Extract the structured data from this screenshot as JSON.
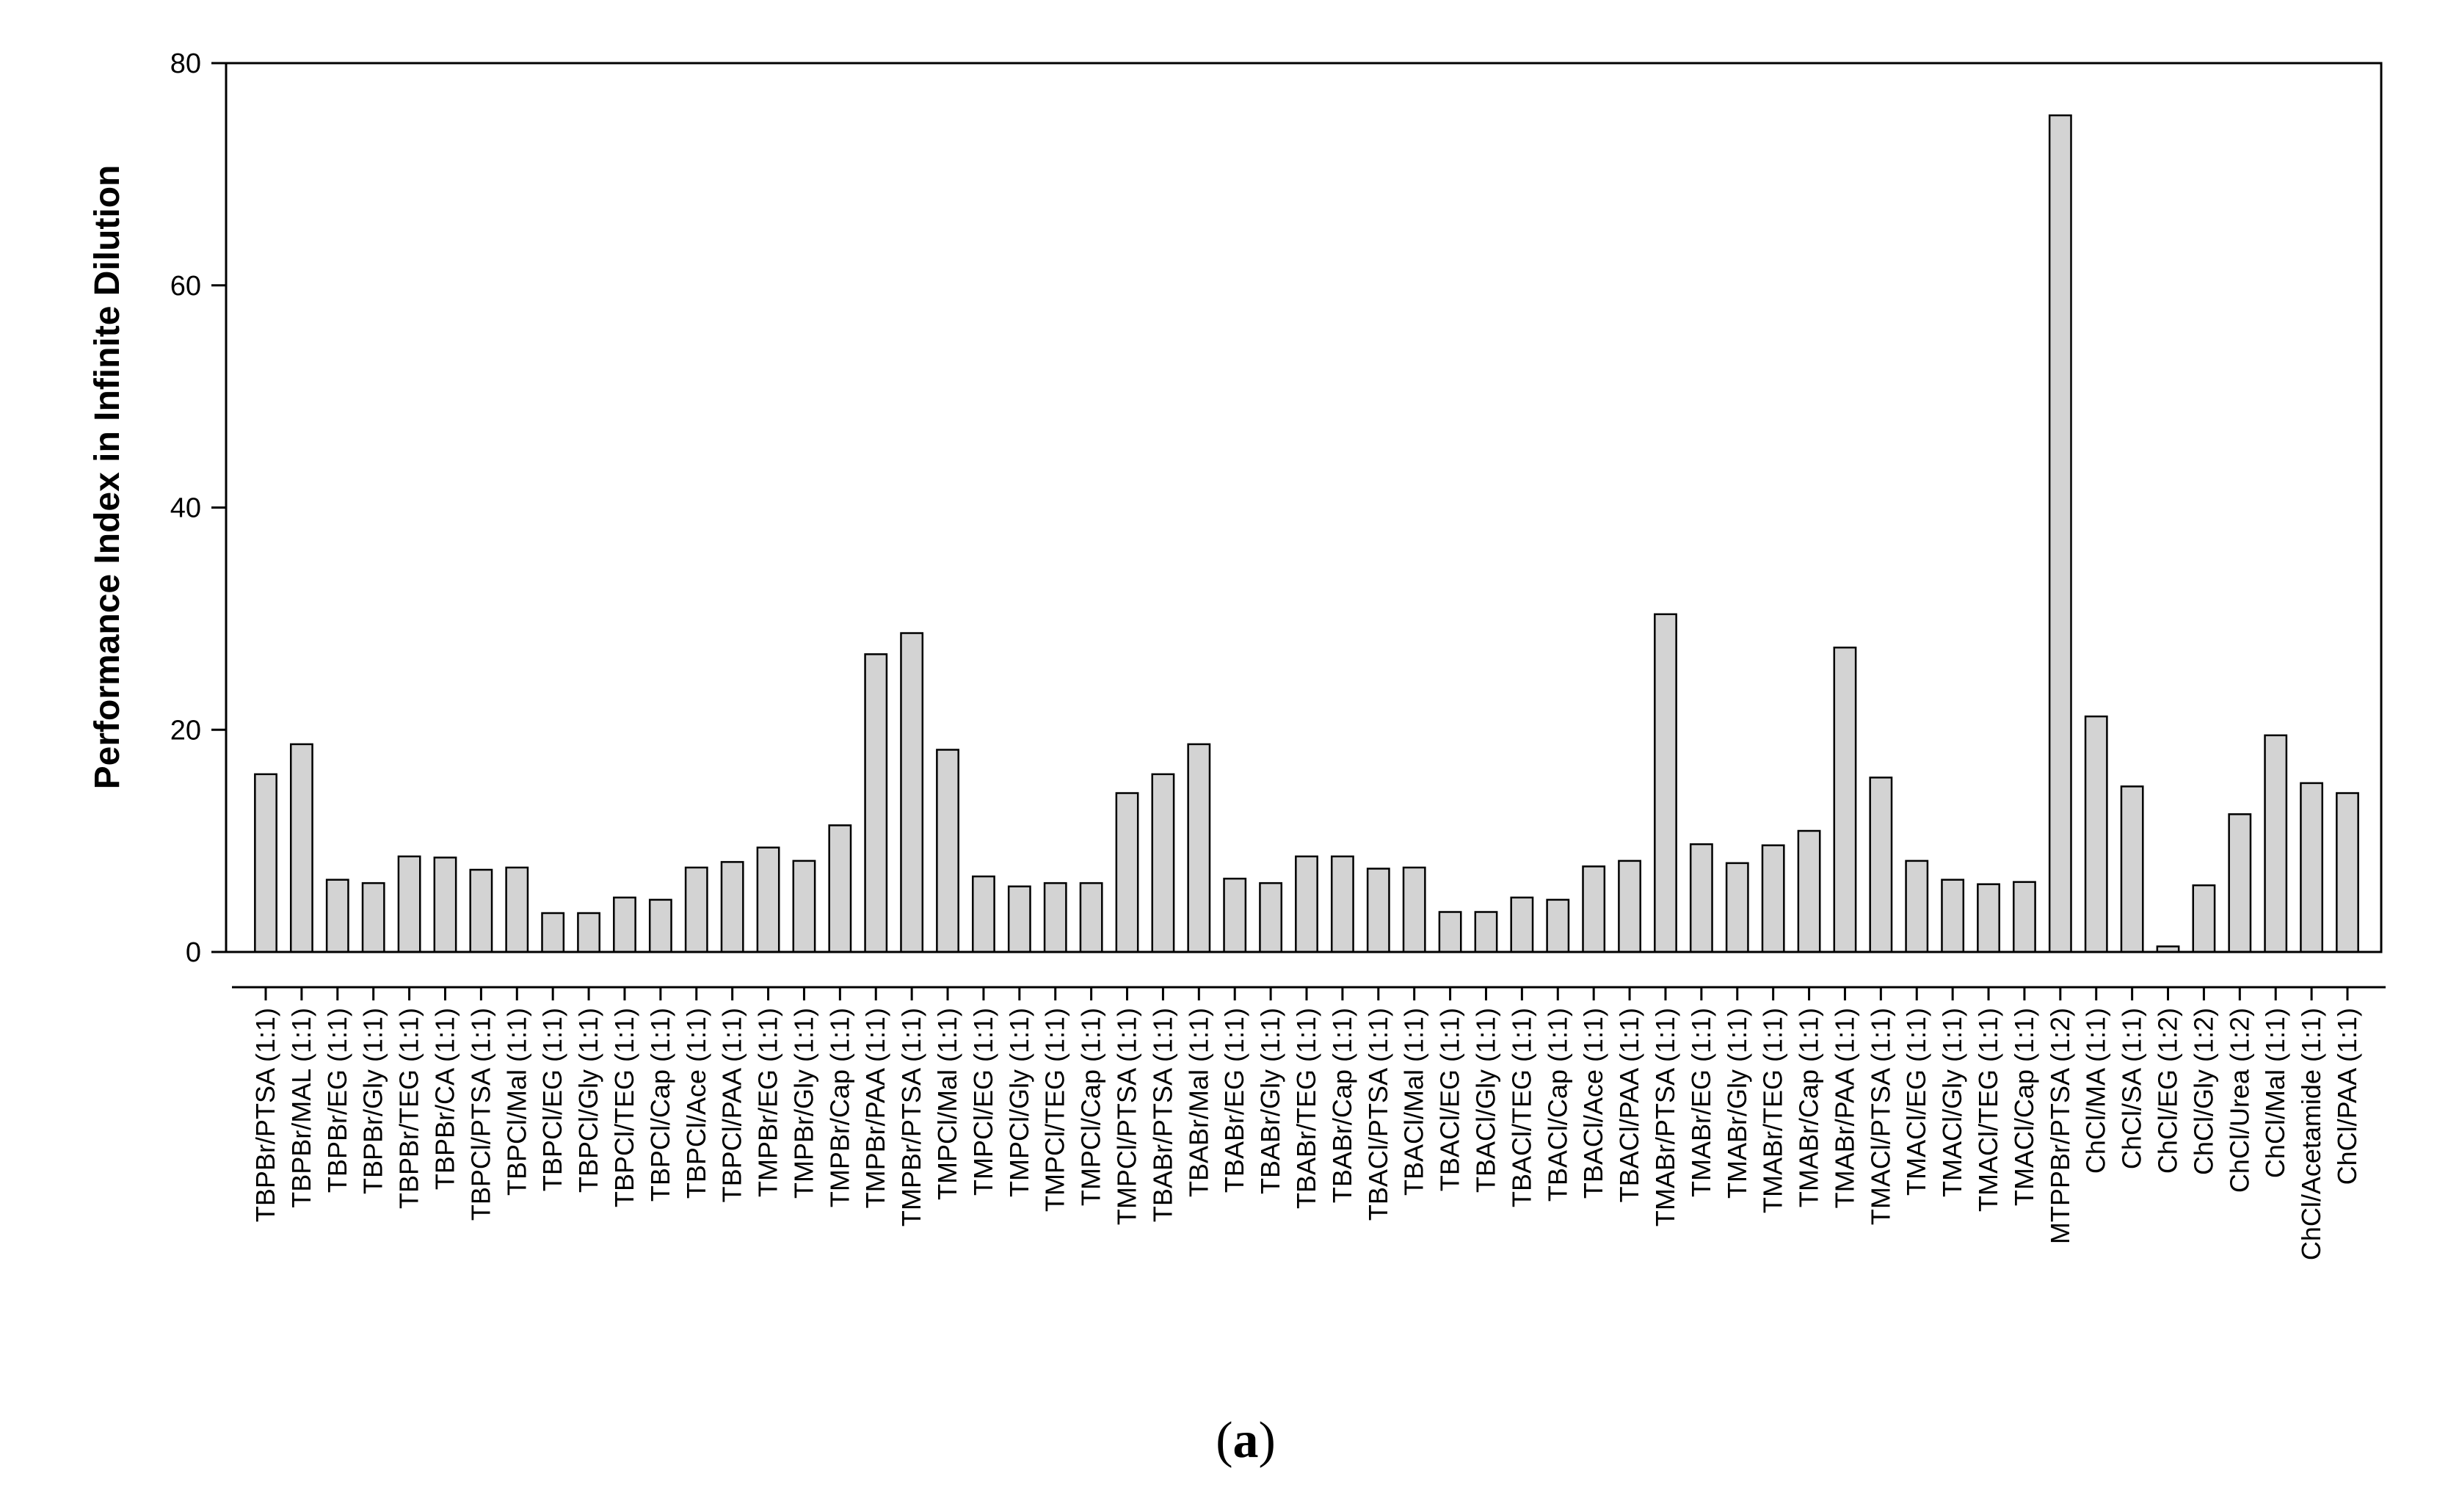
{
  "chart_data": {
    "type": "bar",
    "title": "",
    "xlabel": "",
    "ylabel": "Performance Index in Infinite Dilution",
    "ylim": [
      0,
      80
    ],
    "yticks": [
      0,
      20,
      40,
      60,
      80
    ],
    "grid": false,
    "legend": "none",
    "bar_color": "#d3d3d3",
    "edge_color": "#000000",
    "categories": [
      "TBPBr/PTSA (1:1)",
      "TBPBr/MAL (1:1)",
      "TBPBr/EG (1:1)",
      "TBPBr/Gly (1:1)",
      "TBPBr/TEG (1:1)",
      "TBPBr/CA (1:1)",
      "TBPCl/PTSA (1:1)",
      "TBPCl/Mal (1:1)",
      "TBPCl/EG (1:1)",
      "TBPCl/Gly (1:1)",
      "TBPCl/TEG (1:1)",
      "TBPCl/Cap (1:1)",
      "TBPCl/Ace (1:1)",
      "TBPCl/PAA (1:1)",
      "TMPBr/EG (1:1)",
      "TMPBr/Gly (1:1)",
      "TMPBr/Cap (1:1)",
      "TMPBr/PAA (1:1)",
      "TMPBr/PTSA (1:1)",
      "TMPCl/Mal (1:1)",
      "TMPCl/EG (1:1)",
      "TMPCl/Gly (1:1)",
      "TMPCl/TEG (1:1)",
      "TMPCl/Cap (1:1)",
      "TMPCl/PTSA (1:1)",
      "TBABr/PTSA (1:1)",
      "TBABr/Mal (1:1)",
      "TBABr/EG (1:1)",
      "TBABr/Gly (1:1)",
      "TBABr/TEG (1:1)",
      "TBABr/Cap (1:1)",
      "TBACl/PTSA (1:1)",
      "TBACl/Mal (1:1)",
      "TBACl/EG (1:1)",
      "TBACl/Gly (1:1)",
      "TBACl/TEG (1:1)",
      "TBACl/Cap (1:1)",
      "TBACl/Ace (1:1)",
      "TBACl/PAA (1:1)",
      "TMABr/PTSA (1:1)",
      "TMABr/EG (1:1)",
      "TMABr/Gly (1:1)",
      "TMABr/TEG (1:1)",
      "TMABr/Cap (1:1)",
      "TMABr/PAA (1:1)",
      "TMACl/PTSA (1:1)",
      "TMACl/EG (1:1)",
      "TMACl/Gly (1:1)",
      "TMACl/TEG (1:1)",
      "TMACl/Cap (1:1)",
      "MTPPBr/PTSA (1:2)",
      "ChCl/MA (1:1)",
      "ChCl/SA (1:1)",
      "ChCl/EG (1:2)",
      "ChCl/Gly (1:2)",
      "ChCl/Urea (1:2)",
      "ChCl/Mal (1:1)",
      "ChCl/Acetamide (1:1)",
      "ChCl/PAA (1:1)"
    ],
    "values": [
      16.0,
      18.7,
      6.5,
      6.2,
      8.6,
      8.5,
      7.4,
      7.6,
      3.5,
      3.5,
      4.9,
      4.7,
      7.6,
      8.1,
      9.4,
      8.2,
      11.4,
      26.8,
      28.7,
      18.2,
      6.8,
      5.9,
      6.2,
      6.2,
      14.3,
      16.0,
      18.7,
      6.6,
      6.2,
      8.6,
      8.6,
      7.5,
      7.6,
      3.6,
      3.6,
      4.9,
      4.7,
      7.7,
      8.2,
      30.4,
      9.7,
      8.0,
      9.6,
      10.9,
      27.4,
      15.7,
      8.2,
      6.5,
      6.1,
      6.3,
      75.3,
      21.2,
      14.9,
      0.5,
      6.0,
      12.4,
      19.5,
      15.2,
      14.3
    ]
  },
  "caption": {
    "open": "(",
    "letter": "a",
    "close": ")"
  }
}
